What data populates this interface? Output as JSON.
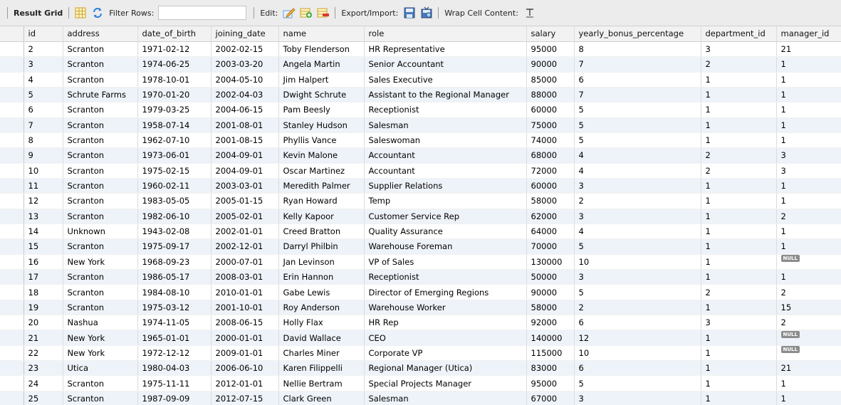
{
  "toolbar": {
    "result_grid_label": "Result Grid",
    "filter_rows_label": "Filter Rows:",
    "filter_value": "",
    "edit_label": "Edit:",
    "export_import_label": "Export/Import:",
    "wrap_cell_label": "Wrap Cell Content:",
    "icons": [
      "grid-view-icon",
      "refresh-icon",
      "edit-cell-icon",
      "add-row-icon",
      "delete-row-icon",
      "export-icon",
      "import-icon",
      "wrap-cell-icon"
    ]
  },
  "grid": {
    "columns": [
      "id",
      "address",
      "date_of_birth",
      "joining_date",
      "name",
      "role",
      "salary",
      "yearly_bonus_percentage",
      "department_id",
      "manager_id"
    ],
    "null_label": "NULL",
    "rows": [
      [
        "2",
        "Scranton",
        "1971-02-12",
        "2002-02-15",
        "Toby Flenderson",
        "HR Representative",
        "95000",
        "8",
        "3",
        "21"
      ],
      [
        "3",
        "Scranton",
        "1974-06-25",
        "2003-03-20",
        "Angela Martin",
        "Senior Accountant",
        "90000",
        "7",
        "2",
        "1"
      ],
      [
        "4",
        "Scranton",
        "1978-10-01",
        "2004-05-10",
        "Jim Halpert",
        "Sales Executive",
        "85000",
        "6",
        "1",
        "1"
      ],
      [
        "5",
        "Schrute Farms",
        "1970-01-20",
        "2002-04-03",
        "Dwight Schrute",
        "Assistant to the Regional Manager",
        "88000",
        "7",
        "1",
        "1"
      ],
      [
        "6",
        "Scranton",
        "1979-03-25",
        "2004-06-15",
        "Pam Beesly",
        "Receptionist",
        "60000",
        "5",
        "1",
        "1"
      ],
      [
        "7",
        "Scranton",
        "1958-07-14",
        "2001-08-01",
        "Stanley Hudson",
        "Salesman",
        "75000",
        "5",
        "1",
        "1"
      ],
      [
        "8",
        "Scranton",
        "1962-07-10",
        "2001-08-15",
        "Phyllis Vance",
        "Saleswoman",
        "74000",
        "5",
        "1",
        "1"
      ],
      [
        "9",
        "Scranton",
        "1973-06-01",
        "2004-09-01",
        "Kevin Malone",
        "Accountant",
        "68000",
        "4",
        "2",
        "3"
      ],
      [
        "10",
        "Scranton",
        "1975-02-15",
        "2004-09-01",
        "Oscar Martinez",
        "Accountant",
        "72000",
        "4",
        "2",
        "3"
      ],
      [
        "11",
        "Scranton",
        "1960-02-11",
        "2003-03-01",
        "Meredith Palmer",
        "Supplier Relations",
        "60000",
        "3",
        "1",
        "1"
      ],
      [
        "12",
        "Scranton",
        "1983-05-05",
        "2005-01-15",
        "Ryan Howard",
        "Temp",
        "58000",
        "2",
        "1",
        "1"
      ],
      [
        "13",
        "Scranton",
        "1982-06-10",
        "2005-02-01",
        "Kelly Kapoor",
        "Customer Service Rep",
        "62000",
        "3",
        "1",
        "2"
      ],
      [
        "14",
        "Unknown",
        "1943-02-08",
        "2002-01-01",
        "Creed Bratton",
        "Quality Assurance",
        "64000",
        "4",
        "1",
        "1"
      ],
      [
        "15",
        "Scranton",
        "1975-09-17",
        "2002-12-01",
        "Darryl Philbin",
        "Warehouse Foreman",
        "70000",
        "5",
        "1",
        "1"
      ],
      [
        "16",
        "New York",
        "1968-09-23",
        "2000-07-01",
        "Jan Levinson",
        "VP of Sales",
        "130000",
        "10",
        "1",
        null
      ],
      [
        "17",
        "Scranton",
        "1986-05-17",
        "2008-03-01",
        "Erin Hannon",
        "Receptionist",
        "50000",
        "3",
        "1",
        "1"
      ],
      [
        "18",
        "Scranton",
        "1984-08-10",
        "2010-01-01",
        "Gabe Lewis",
        "Director of Emerging Regions",
        "90000",
        "5",
        "2",
        "2"
      ],
      [
        "19",
        "Scranton",
        "1975-03-12",
        "2001-10-01",
        "Roy Anderson",
        "Warehouse Worker",
        "58000",
        "2",
        "1",
        "15"
      ],
      [
        "20",
        "Nashua",
        "1974-11-05",
        "2008-06-15",
        "Holly Flax",
        "HR Rep",
        "92000",
        "6",
        "3",
        "2"
      ],
      [
        "21",
        "New York",
        "1965-01-01",
        "2000-01-01",
        "David Wallace",
        "CEO",
        "140000",
        "12",
        "1",
        null
      ],
      [
        "22",
        "New York",
        "1972-12-12",
        "2009-01-01",
        "Charles Miner",
        "Corporate VP",
        "115000",
        "10",
        "1",
        null
      ],
      [
        "23",
        "Utica",
        "1980-04-03",
        "2006-06-10",
        "Karen Filippelli",
        "Regional Manager (Utica)",
        "83000",
        "6",
        "1",
        "21"
      ],
      [
        "24",
        "Scranton",
        "1975-11-11",
        "2012-01-01",
        "Nellie Bertram",
        "Special Projects Manager",
        "95000",
        "5",
        "1",
        "1"
      ],
      [
        "25",
        "Scranton",
        "1987-09-09",
        "2012-07-15",
        "Clark Green",
        "Salesman",
        "67000",
        "3",
        "1",
        "1"
      ]
    ]
  }
}
